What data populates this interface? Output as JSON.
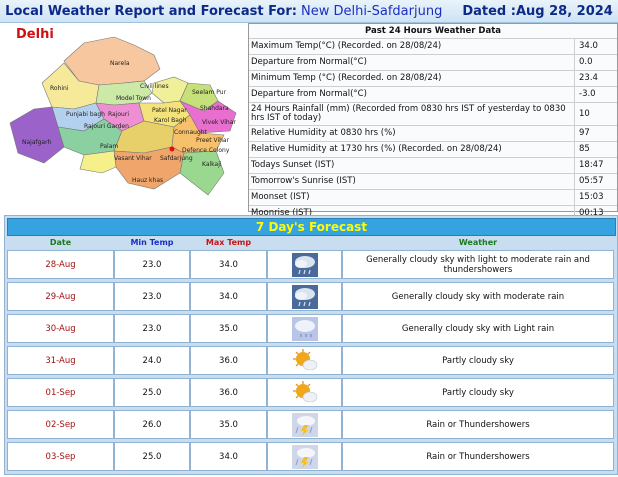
{
  "header": {
    "prefix": "Local Weather Report and Forecast For:",
    "station": "New Delhi-Safdarjung",
    "dated": "Dated :Aug 28, 2024"
  },
  "map": {
    "title": "Delhi",
    "labels": [
      "Narela",
      "Rohini",
      "Model Town",
      "Civil lines",
      "Seelam Pur",
      "Punjabi bagh",
      "Rajouri",
      "Shahdara",
      "Patel Nagar",
      "Karol Bagh",
      "Najafgarh",
      "Rajouri Garden",
      "Vivek Vihar",
      "Connaught",
      "Preet Vihar",
      "Palam",
      "Vasant Vihar",
      "Defence Colony",
      "Safdarjung",
      "Hauz khas",
      "Kalkaji"
    ]
  },
  "past": {
    "title": "Past 24 Hours Weather Data",
    "rows": [
      {
        "label": "Maximum Temp(°C) (Recorded. on 28/08/24)",
        "value": "34.0"
      },
      {
        "label": "Departure from Normal(°C)",
        "value": "0.0"
      },
      {
        "label": "Minimum Temp (°C) (Recorded. on 28/08/24)",
        "value": "23.4"
      },
      {
        "label": "Departure from Normal(°C)",
        "value": "-3.0"
      },
      {
        "label": "24 Hours Rainfall (mm) (Recorded from 0830 hrs IST of yesterday to 0830 hrs IST of today)",
        "value": "10"
      },
      {
        "label": "Relative Humidity at 0830 hrs (%)",
        "value": "97"
      },
      {
        "label": "Relative Humidity at 1730 hrs (%) (Recorded. on 28/08/24)",
        "value": "85"
      },
      {
        "label": "Todays Sunset (IST)",
        "value": "18:47"
      },
      {
        "label": "Tomorrow's Sunrise (IST)",
        "value": "05:57"
      },
      {
        "label": "Moonset (IST)",
        "value": "15:03"
      },
      {
        "label": "Moonrise (IST)",
        "value": "00:13"
      }
    ]
  },
  "forecast": {
    "title": "7 Day's Forecast",
    "headers": {
      "date": "Date",
      "min": "Min Temp",
      "max": "Max Temp",
      "weather": "Weather"
    },
    "header_colors": {
      "date": "#1a7a1a",
      "min": "#1a2fc2",
      "max": "#c81414",
      "weather": "#1a7a1a"
    },
    "rows": [
      {
        "date": "28-Aug",
        "min": "23.0",
        "max": "34.0",
        "icon": "rain-thunder-cloud-icon",
        "weather": "Generally cloudy sky with light to moderate rain and thundershowers"
      },
      {
        "date": "29-Aug",
        "min": "23.0",
        "max": "34.0",
        "icon": "rain-thunder-cloud-icon",
        "weather": "Generally cloudy sky with moderate rain"
      },
      {
        "date": "30-Aug",
        "min": "23.0",
        "max": "35.0",
        "icon": "light-rain-cloud-icon",
        "weather": "Generally cloudy sky with Light rain"
      },
      {
        "date": "31-Aug",
        "min": "24.0",
        "max": "36.0",
        "icon": "partly-cloudy-icon",
        "weather": "Partly cloudy sky"
      },
      {
        "date": "01-Sep",
        "min": "25.0",
        "max": "36.0",
        "icon": "partly-cloudy-icon",
        "weather": "Partly cloudy sky"
      },
      {
        "date": "02-Sep",
        "min": "26.0",
        "max": "35.0",
        "icon": "thundershower-icon",
        "weather": "Rain or Thundershowers"
      },
      {
        "date": "03-Sep",
        "min": "25.0",
        "max": "34.0",
        "icon": "thundershower-icon",
        "weather": "Rain or Thundershowers"
      }
    ]
  }
}
